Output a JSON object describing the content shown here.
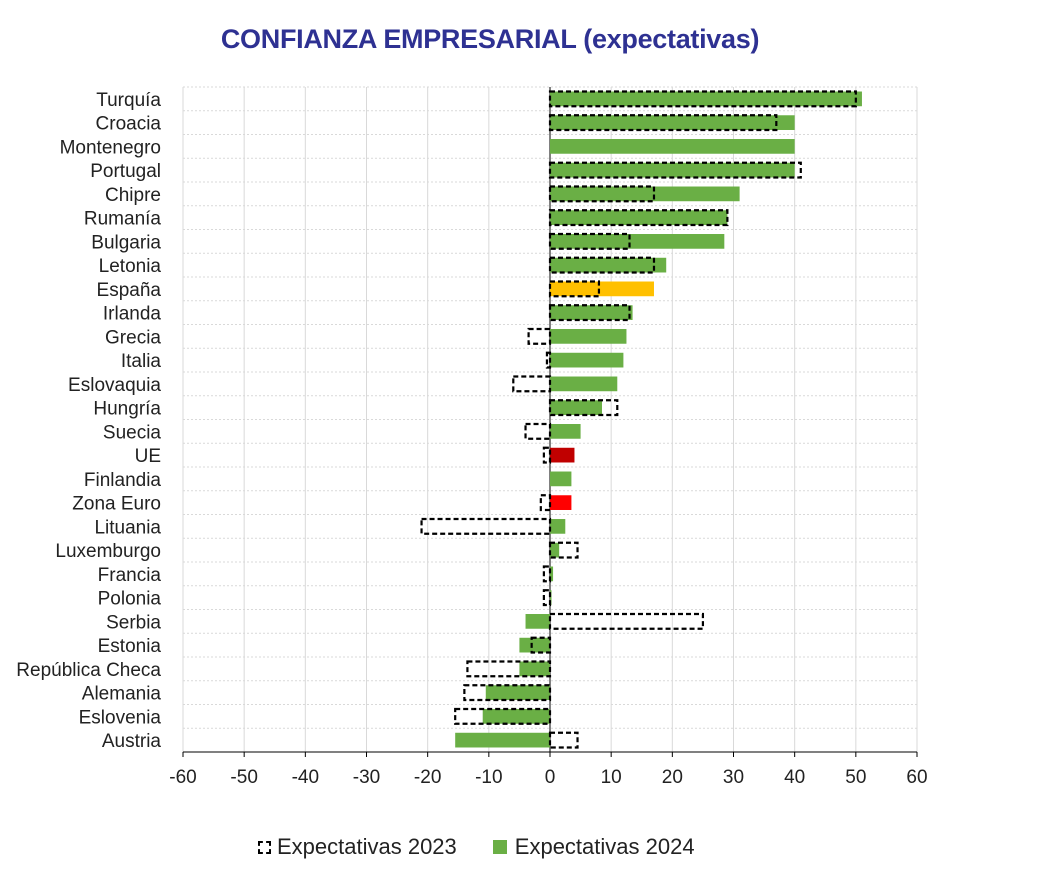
{
  "title": "CONFIANZA EMPRESARIAL (expectativas)",
  "legend": {
    "label_2023": "Expectativas 2023",
    "label_2024": "Expectativas 2024"
  },
  "chart_data": {
    "type": "bar",
    "orientation": "horizontal",
    "title": "CONFIANZA EMPRESARIAL (expectativas)",
    "xlim": [
      -60,
      60
    ],
    "xticks": [
      -60,
      -50,
      -40,
      -30,
      -20,
      -10,
      0,
      10,
      20,
      30,
      40,
      50,
      60
    ],
    "grid": true,
    "legend_position": "bottom",
    "categories": [
      "Turquía",
      "Croacia",
      "Montenegro",
      "Portugal",
      "Chipre",
      "Rumanía",
      "Bulgaria",
      "Letonia",
      "España",
      "Irlanda",
      "Grecia",
      "Italia",
      "Eslovaquia",
      "Hungría",
      "Suecia",
      "UE",
      "Finlandia",
      "Zona Euro",
      "Lituania",
      "Luxemburgo",
      "Francia",
      "Polonia",
      "Serbia",
      "Estonia",
      "República Checa",
      "Alemania",
      "Eslovenia",
      "Austria"
    ],
    "series": [
      {
        "name": "Expectativas 2023",
        "style": "dashed-outline",
        "values": [
          50,
          37,
          null,
          41,
          17,
          29,
          13,
          17,
          8,
          13,
          -3.5,
          -0.5,
          -6,
          11,
          -4,
          -1,
          null,
          -1.5,
          -21,
          4.5,
          -1,
          -1,
          25,
          -3,
          -13.5,
          -14,
          -15.5,
          4.5
        ]
      },
      {
        "name": "Expectativas 2024",
        "style": "filled",
        "values": [
          51,
          40,
          40,
          40,
          31,
          29,
          28.5,
          19,
          17,
          13.5,
          12.5,
          12,
          11,
          8.5,
          5,
          4,
          3.5,
          3.5,
          2.5,
          1.5,
          0.5,
          0,
          -4,
          -5,
          -5,
          -10.5,
          -11,
          -15.5
        ]
      }
    ],
    "colors": {
      "default": "#6aaf45",
      "highlight_spain": "#ffc000",
      "highlight_ue": "#c00000",
      "highlight_euro": "#ff0000",
      "outline": "#000000",
      "grid": "#d9d9d9"
    },
    "highlights": {
      "España": "highlight_spain",
      "UE": "highlight_ue",
      "Zona Euro": "highlight_euro"
    }
  }
}
